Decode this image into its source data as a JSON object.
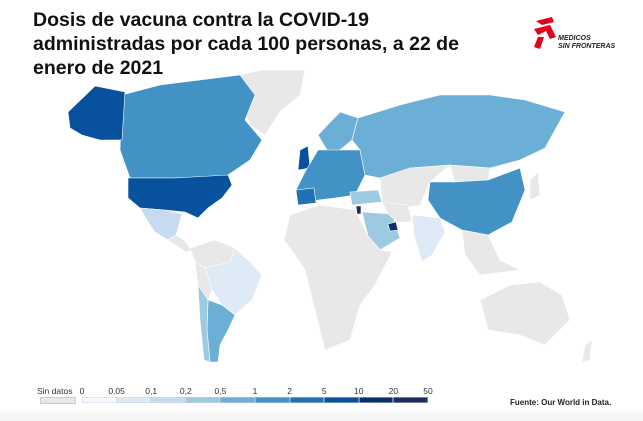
{
  "title": "Dosis de vacuna contra la COVID-19 administradas por cada 100 personas, a 22 de enero de 2021",
  "logo": {
    "line1": "MEDICOS",
    "line2": "SIN FRONTERAS",
    "color": "#e3001b"
  },
  "source": "Fuente: Our World in Data.",
  "legend": {
    "no_data_label": "Sin datos",
    "no_data_color": "#e8e8e8",
    "ticks": [
      "0",
      "0,05",
      "0,1",
      "0,2",
      "0,5",
      "1",
      "2",
      "5",
      "10",
      "20",
      "50"
    ],
    "colors": [
      "#f7fbff",
      "#deebf7",
      "#c6dbef",
      "#9ecae1",
      "#6baed6",
      "#4292c6",
      "#2171b5",
      "#08519c",
      "#08306b",
      "#1c2d5e"
    ]
  },
  "map_colors": {
    "no_data": "#e8e8e8",
    "border": "#ffffff"
  }
}
